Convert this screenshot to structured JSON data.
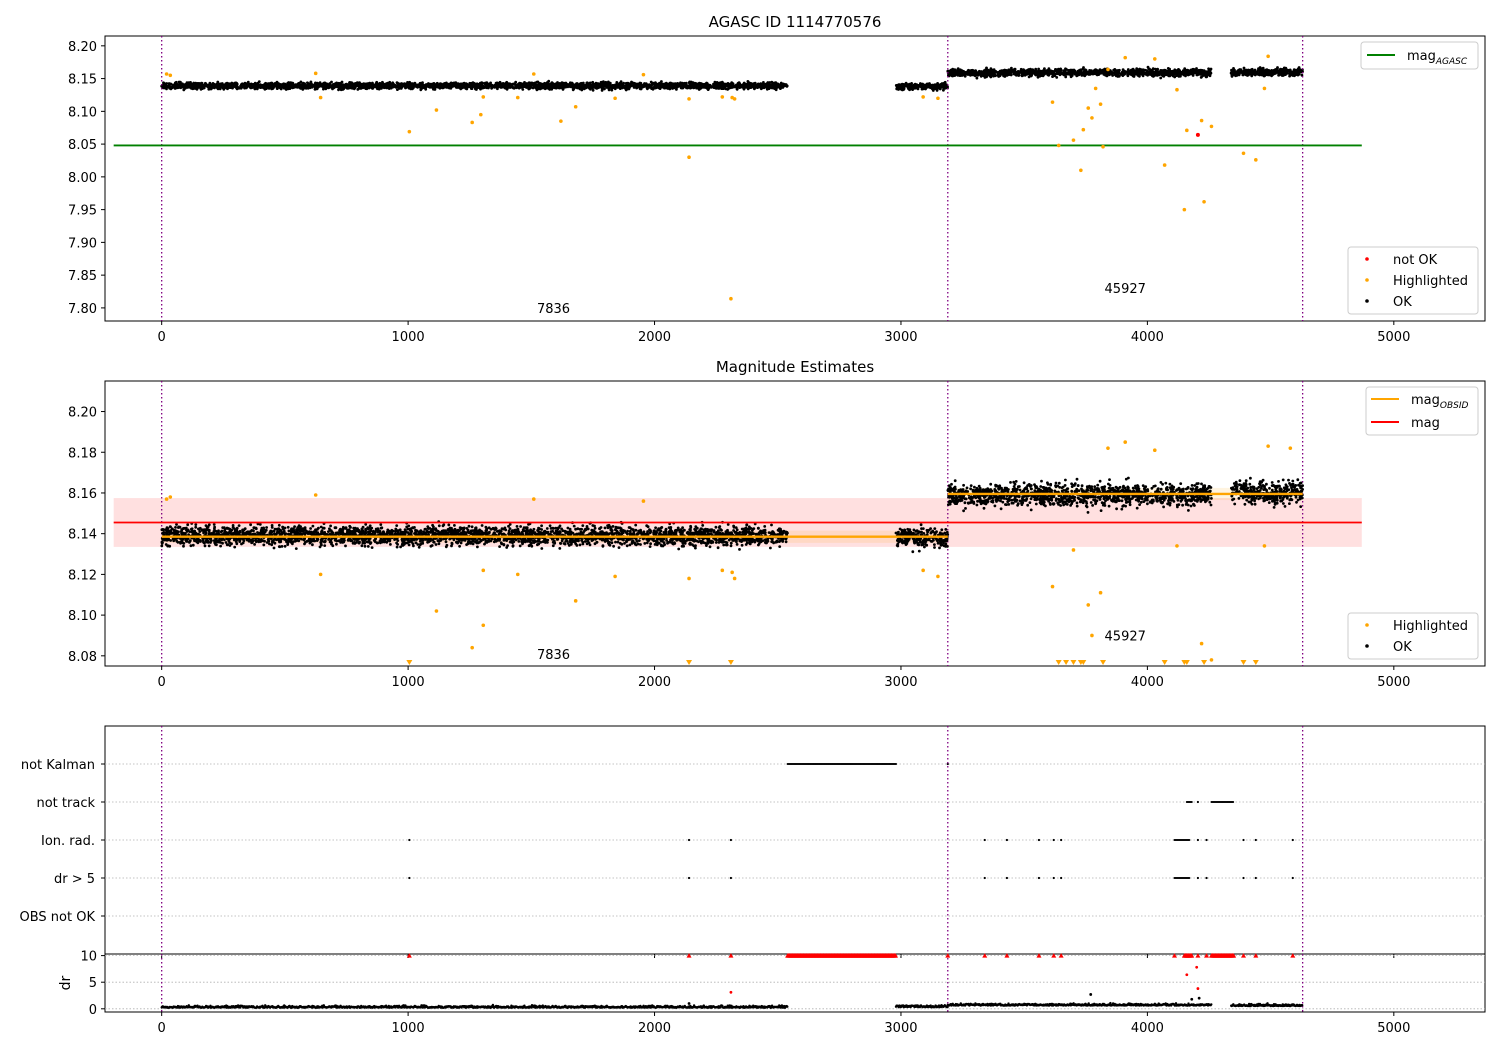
{
  "chart_data": [
    {
      "type": "scatter",
      "title": "AGASC ID 1114770576",
      "xlim": [
        -230,
        5370
      ],
      "ylim": [
        7.78,
        8.215
      ],
      "yticks": [
        7.8,
        7.85,
        7.9,
        7.95,
        8.0,
        8.05,
        8.1,
        8.15,
        8.2
      ],
      "xticks": [
        0,
        1000,
        2000,
        3000,
        4000,
        5000
      ],
      "vlines": [
        0,
        3190,
        4630
      ],
      "annotations": [
        {
          "text": "7836",
          "x": 1590,
          "y": 7.8
        },
        {
          "text": "45927",
          "x": 3910,
          "y": 7.83
        }
      ],
      "reference_lines": [
        {
          "name": "mag",
          "subscript": "AGASC",
          "y": 8.048,
          "x_range": [
            0,
            4870
          ],
          "color": "#008000"
        }
      ],
      "segments": [
        {
          "x_range": [
            0,
            2540
          ],
          "center": 8.139,
          "spread": 0.006
        },
        {
          "x_range": [
            2980,
            3190
          ],
          "center": 8.138,
          "spread": 0.006
        },
        {
          "x_range": [
            3190,
            4260
          ],
          "center": 8.159,
          "spread": 0.007
        },
        {
          "x_range": [
            4340,
            4630
          ],
          "center": 8.16,
          "spread": 0.007
        }
      ],
      "highlighted_points": [
        [
          20,
          8.157
        ],
        [
          35,
          8.155
        ],
        [
          625,
          8.158
        ],
        [
          645,
          8.121
        ],
        [
          1005,
          8.069
        ],
        [
          1115,
          8.102
        ],
        [
          1260,
          8.083
        ],
        [
          1295,
          8.095
        ],
        [
          1305,
          8.122
        ],
        [
          1445,
          8.121
        ],
        [
          1510,
          8.157
        ],
        [
          1620,
          8.085
        ],
        [
          1680,
          8.107
        ],
        [
          1840,
          8.12
        ],
        [
          1955,
          8.156
        ],
        [
          2140,
          8.03
        ],
        [
          2140,
          8.119
        ],
        [
          2275,
          8.122
        ],
        [
          2310,
          7.814
        ],
        [
          2315,
          8.121
        ],
        [
          2325,
          8.119
        ],
        [
          3090,
          8.122
        ],
        [
          3150,
          8.12
        ],
        [
          3615,
          8.114
        ],
        [
          3640,
          8.048
        ],
        [
          3700,
          8.056
        ],
        [
          3730,
          8.01
        ],
        [
          3740,
          8.072
        ],
        [
          3760,
          8.105
        ],
        [
          3775,
          8.09
        ],
        [
          3790,
          8.135
        ],
        [
          3810,
          8.111
        ],
        [
          3820,
          8.046
        ],
        [
          3840,
          8.164
        ],
        [
          3910,
          8.182
        ],
        [
          4030,
          8.18
        ],
        [
          4070,
          8.018
        ],
        [
          4120,
          8.133
        ],
        [
          4150,
          7.95
        ],
        [
          4160,
          8.071
        ],
        [
          4220,
          8.086
        ],
        [
          4230,
          7.962
        ],
        [
          4260,
          8.077
        ],
        [
          4390,
          8.036
        ],
        [
          4440,
          8.026
        ],
        [
          4475,
          8.135
        ],
        [
          4490,
          8.184
        ]
      ],
      "not_ok_points": [
        [
          4205,
          8.064
        ]
      ],
      "legend": {
        "position": "top-right",
        "lower_position": "bottom-right",
        "entries": [
          "not OK",
          "Highlighted",
          "OK"
        ]
      }
    },
    {
      "type": "scatter",
      "title": "Magnitude Estimates",
      "xlim": [
        -230,
        5370
      ],
      "ylim": [
        8.075,
        8.215
      ],
      "yticks": [
        8.08,
        8.1,
        8.12,
        8.14,
        8.16,
        8.18,
        8.2
      ],
      "xticks": [
        0,
        1000,
        2000,
        3000,
        4000,
        5000
      ],
      "vlines": [
        0,
        3190,
        4630
      ],
      "annotations": [
        {
          "text": "7836",
          "x": 1590,
          "y": 8.081
        },
        {
          "text": "45927",
          "x": 3910,
          "y": 8.09
        }
      ],
      "mag_line": {
        "name": "mag",
        "y": 8.1455,
        "band": [
          8.1335,
          8.1575
        ],
        "x_range": [
          0,
          4870
        ],
        "color": "#ff0000"
      },
      "obsid_steps": {
        "name": "mag",
        "subscript": "OBSID",
        "color": "#ffa500",
        "segments": [
          [
            0,
            3190,
            8.1385
          ],
          [
            3190,
            4630,
            8.1595
          ]
        ]
      },
      "segments": [
        {
          "x_range": [
            0,
            2540
          ],
          "center": 8.139,
          "spread": 0.006
        },
        {
          "x_range": [
            2980,
            3190
          ],
          "center": 8.138,
          "spread": 0.006
        },
        {
          "x_range": [
            3190,
            4260
          ],
          "center": 8.159,
          "spread": 0.007
        },
        {
          "x_range": [
            4340,
            4630
          ],
          "center": 8.16,
          "spread": 0.007
        }
      ],
      "highlighted_points": [
        [
          20,
          8.157
        ],
        [
          35,
          8.158
        ],
        [
          625,
          8.159
        ],
        [
          645,
          8.12
        ],
        [
          1115,
          8.102
        ],
        [
          1260,
          8.084
        ],
        [
          1305,
          8.095
        ],
        [
          1305,
          8.122
        ],
        [
          1445,
          8.12
        ],
        [
          1510,
          8.157
        ],
        [
          1680,
          8.107
        ],
        [
          1840,
          8.119
        ],
        [
          1955,
          8.156
        ],
        [
          2140,
          8.118
        ],
        [
          2275,
          8.122
        ],
        [
          2315,
          8.121
        ],
        [
          2325,
          8.118
        ],
        [
          3090,
          8.122
        ],
        [
          3150,
          8.119
        ],
        [
          3615,
          8.114
        ],
        [
          3700,
          8.132
        ],
        [
          3760,
          8.105
        ],
        [
          3775,
          8.09
        ],
        [
          3810,
          8.111
        ],
        [
          3840,
          8.182
        ],
        [
          3910,
          8.185
        ],
        [
          4030,
          8.181
        ],
        [
          4120,
          8.134
        ],
        [
          4220,
          8.086
        ],
        [
          4260,
          8.078
        ],
        [
          4475,
          8.134
        ],
        [
          4490,
          8.183
        ],
        [
          4580,
          8.182
        ]
      ],
      "off_scale_markers": [
        1005,
        2140,
        2310,
        3640,
        3670,
        3700,
        3730,
        3740,
        3820,
        4070,
        4150,
        4160,
        4230,
        4390,
        4440
      ],
      "legend": {
        "position": "top-right",
        "lower_position": "bottom-right",
        "entries": [
          "Highlighted",
          "OK"
        ]
      }
    },
    {
      "type": "scatter",
      "xlim": [
        -230,
        5370
      ],
      "xticks": [
        0,
        1000,
        2000,
        3000,
        4000,
        5000
      ],
      "vlines": [
        0,
        3190,
        4630
      ],
      "flag_rows": [
        {
          "label": "not Kalman",
          "dense_ranges": [
            [
              2540,
              2980
            ]
          ],
          "points": [
            3190
          ]
        },
        {
          "label": "not track",
          "dense_ranges": [
            [
              4160,
              4180
            ],
            [
              4260,
              4350
            ]
          ],
          "points": [
            4205
          ]
        },
        {
          "label": "Ion. rad.",
          "dense_ranges": [
            [
              4110,
              4170
            ]
          ],
          "points": [
            1005,
            2140,
            2310,
            3340,
            3430,
            3560,
            3620,
            3650,
            4205,
            4240,
            4390,
            4440,
            4590
          ]
        },
        {
          "label": "dr > 5",
          "dense_ranges": [
            [
              4110,
              4170
            ]
          ],
          "points": [
            1005,
            2140,
            2310,
            3340,
            3430,
            3560,
            3620,
            3650,
            4205,
            4240,
            4390,
            4440,
            4590
          ]
        },
        {
          "label": "OBS not OK",
          "dense_ranges": [],
          "points": []
        }
      ]
    },
    {
      "type": "scatter",
      "ylabel": "dr",
      "xlim": [
        -230,
        5370
      ],
      "ylim": [
        -0.6,
        10.3
      ],
      "yticks": [
        0,
        5,
        10
      ],
      "xticks": [
        0,
        1000,
        2000,
        3000,
        4000,
        5000
      ],
      "vlines": [
        0,
        3190,
        4630
      ],
      "baseline_segments": [
        [
          0,
          2540,
          0.2
        ],
        [
          2980,
          3190,
          0.3
        ],
        [
          3190,
          4260,
          0.6
        ],
        [
          4340,
          4630,
          0.5
        ]
      ],
      "capped_value": 10,
      "capped_points": [
        1005,
        2140,
        2310,
        3190,
        3340,
        3430,
        3560,
        3620,
        3650,
        4110,
        4160,
        4205,
        4240,
        4390,
        4440,
        4590
      ],
      "capped_ranges": [
        [
          2540,
          2980
        ],
        [
          4260,
          4350
        ],
        [
          4150,
          4180
        ]
      ],
      "outliers": [
        [
          2140,
          1.0
        ],
        [
          2310,
          3.1
        ],
        [
          3770,
          2.7
        ],
        [
          4160,
          6.4
        ],
        [
          4200,
          7.8
        ],
        [
          4205,
          3.8
        ],
        [
          4210,
          2.0
        ],
        [
          4180,
          1.8
        ]
      ]
    }
  ]
}
